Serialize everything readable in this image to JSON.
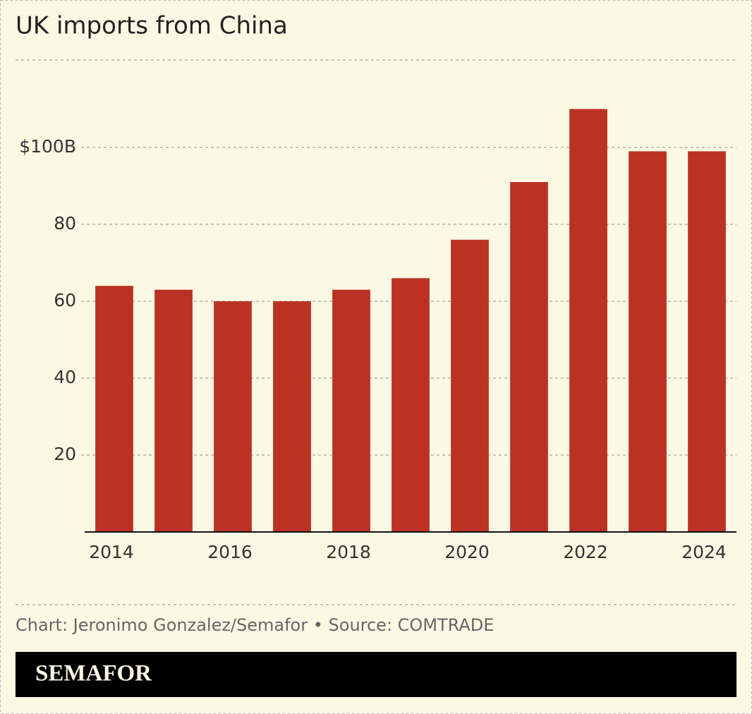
{
  "chart_data": {
    "type": "bar",
    "title": "UK imports from China",
    "categories": [
      "2014",
      null,
      "2016",
      null,
      "2018",
      null,
      "2020",
      null,
      "2022",
      null,
      "2024"
    ],
    "values": [
      64,
      63,
      60,
      60,
      63,
      66,
      76,
      91,
      110,
      99,
      99
    ],
    "color": "#bb3222",
    "ylim": [
      0,
      115
    ],
    "yticks": [
      20,
      40,
      60,
      80,
      {
        "value": 100,
        "label": "$100B"
      }
    ],
    "grid": true,
    "source": "Chart: Jeronimo Gonzalez/Semafor • Source: COMTRADE",
    "brand": "SEMAFOR"
  }
}
